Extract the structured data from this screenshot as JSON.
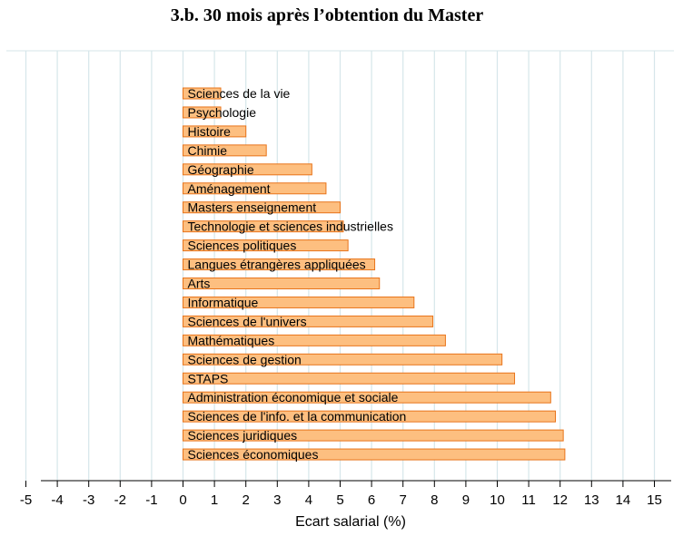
{
  "chart_data": {
    "type": "bar",
    "orientation": "horizontal",
    "title": "3.b. 30 mois après l’obtention du Master",
    "xlabel": "Ecart salarial (%)",
    "ylabel": "",
    "xlim": [
      -5,
      15
    ],
    "xticks": [
      "-5",
      "-4",
      "-3",
      "-2",
      "-1",
      "0",
      "1",
      "2",
      "3",
      "4",
      "5",
      "6",
      "7",
      "8",
      "9",
      "10",
      "11",
      "12",
      "13",
      "14",
      "15"
    ],
    "grid": true,
    "legend": "none",
    "bar_color": "#fdbf80",
    "bar_edge_color": "#e8741a",
    "grid_color": "#d6e6ea",
    "categories": [
      "Sciences de la vie",
      "Psychologie",
      "Histoire",
      "Chimie",
      "Géographie",
      "Aménagement",
      "Masters enseignement",
      "Technologie et sciences industrielles",
      "Sciences politiques",
      "Langues étrangères appliquées",
      "Arts",
      "Informatique",
      "Sciences de l'univers",
      "Mathématiques",
      "Sciences de gestion",
      "STAPS",
      "Administration économique et sociale",
      "Sciences de l'info. et la communication",
      "Sciences juridiques",
      "Sciences économiques"
    ],
    "values": [
      1.2,
      1.2,
      2.0,
      2.65,
      4.1,
      4.55,
      5.0,
      5.1,
      5.25,
      6.1,
      6.25,
      7.35,
      7.95,
      8.35,
      10.15,
      10.55,
      11.7,
      11.85,
      12.1,
      12.15
    ]
  }
}
